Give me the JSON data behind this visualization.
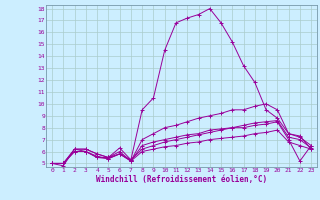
{
  "xlabel": "Windchill (Refroidissement éolien,°C)",
  "bg_color": "#cceeff",
  "line_color": "#990099",
  "grid_color": "#aacccc",
  "spine_color": "#7799aa",
  "xmin": 0,
  "xmax": 23,
  "ymin": 5,
  "ymax": 18,
  "xticks": [
    0,
    1,
    2,
    3,
    4,
    5,
    6,
    7,
    8,
    9,
    10,
    11,
    12,
    13,
    14,
    15,
    16,
    17,
    18,
    19,
    20,
    21,
    22,
    23
  ],
  "yticks": [
    5,
    6,
    7,
    8,
    9,
    10,
    11,
    12,
    13,
    14,
    15,
    16,
    17,
    18
  ],
  "lines": [
    [
      5.0,
      4.8,
      6.2,
      6.2,
      5.8,
      5.5,
      6.3,
      5.3,
      9.5,
      10.5,
      14.5,
      16.8,
      17.2,
      17.5,
      18.0,
      16.8,
      15.2,
      13.2,
      11.8,
      9.5,
      8.8,
      7.5,
      7.3,
      6.2
    ],
    [
      5.0,
      5.0,
      6.2,
      6.2,
      5.8,
      5.5,
      6.0,
      5.2,
      7.0,
      7.5,
      8.0,
      8.2,
      8.5,
      8.8,
      9.0,
      9.2,
      9.5,
      9.5,
      9.8,
      10.0,
      9.5,
      7.5,
      7.2,
      6.5
    ],
    [
      5.0,
      5.0,
      6.0,
      6.0,
      5.6,
      5.4,
      5.8,
      5.2,
      6.5,
      6.8,
      7.0,
      7.2,
      7.4,
      7.5,
      7.8,
      7.9,
      8.0,
      8.2,
      8.4,
      8.5,
      8.6,
      7.2,
      7.0,
      6.3
    ],
    [
      5.0,
      5.0,
      6.2,
      6.0,
      5.5,
      5.4,
      5.8,
      5.3,
      6.2,
      6.5,
      6.8,
      7.0,
      7.2,
      7.4,
      7.6,
      7.8,
      8.0,
      8.0,
      8.2,
      8.3,
      8.5,
      7.0,
      5.2,
      6.5
    ],
    [
      5.0,
      5.0,
      6.0,
      6.0,
      5.5,
      5.5,
      5.8,
      5.2,
      6.0,
      6.2,
      6.4,
      6.5,
      6.7,
      6.8,
      7.0,
      7.1,
      7.2,
      7.3,
      7.5,
      7.6,
      7.8,
      6.8,
      6.5,
      6.2
    ]
  ]
}
